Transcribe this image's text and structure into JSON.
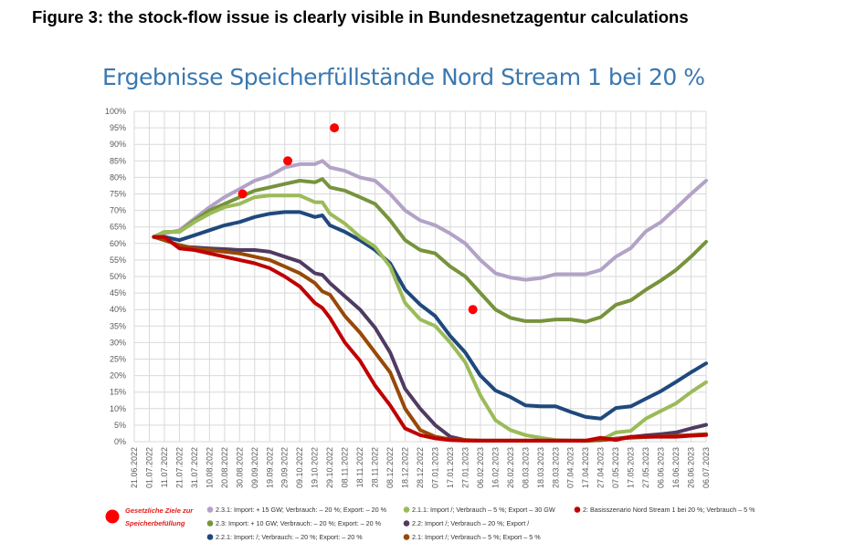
{
  "figure_title": "Figure 3: the stock-flow issue is clearly visible in Bundesnetzagentur calculations",
  "chart_data": {
    "type": "line",
    "title": "Ergebnisse Speicherfüllstände Nord Stream 1 bei 20 %",
    "xlabel": "",
    "ylabel": "",
    "xlim": [
      "2022-06-21",
      "2023-07-06"
    ],
    "ylim": [
      0,
      100
    ],
    "grid": true,
    "legend_position": "bottom",
    "y_ticks": [
      "0%",
      "5%",
      "10%",
      "15%",
      "20%",
      "25%",
      "30%",
      "35%",
      "40%",
      "45%",
      "50%",
      "55%",
      "60%",
      "65%",
      "70%",
      "75%",
      "80%",
      "85%",
      "90%",
      "95%",
      "100%"
    ],
    "x_ticks": [
      "21.06.2022",
      "01.07.2022",
      "11.07.2022",
      "21.07.2022",
      "31.07.2022",
      "10.08.2022",
      "20.08.2022",
      "30.08.2022",
      "09.09.2022",
      "19.09.2022",
      "29.09.2022",
      "09.10.2022",
      "19.10.2022",
      "29.10.2022",
      "08.11.2022",
      "18.11.2022",
      "28.11.2022",
      "08.12.2022",
      "18.12.2022",
      "28.12.2022",
      "07.01.2023",
      "17.01.2023",
      "27.01.2023",
      "06.02.2023",
      "16.02.2023",
      "26.02.2023",
      "08.03.2023",
      "18.03.2023",
      "28.03.2023",
      "07.04.2023",
      "17.04.2023",
      "27.04.2023",
      "07.05.2023",
      "17.05.2023",
      "27.05.2023",
      "06.06.2023",
      "16.06.2023",
      "26.06.2023",
      "06.07.2023"
    ],
    "x": [
      "2022-07-04",
      "2022-07-11",
      "2022-07-21",
      "2022-07-31",
      "2022-08-10",
      "2022-08-20",
      "2022-08-30",
      "2022-09-09",
      "2022-09-19",
      "2022-09-29",
      "2022-10-09",
      "2022-10-19",
      "2022-10-24",
      "2022-10-29",
      "2022-11-08",
      "2022-11-18",
      "2022-11-28",
      "2022-12-08",
      "2022-12-18",
      "2022-12-28",
      "2023-01-07",
      "2023-01-17",
      "2023-01-27",
      "2023-02-06",
      "2023-02-16",
      "2023-02-26",
      "2023-03-08",
      "2023-03-18",
      "2023-03-28",
      "2023-04-07",
      "2023-04-17",
      "2023-04-27",
      "2023-05-07",
      "2023-05-17",
      "2023-05-27",
      "2023-06-06",
      "2023-06-16",
      "2023-06-26",
      "2023-07-06"
    ],
    "series": [
      {
        "name": "2.3.1: Import: + 15 GW; Verbrauch: – 20 %; Export: – 20 %",
        "color": "#b3a2c7",
        "values": [
          62,
          63,
          64,
          67.5,
          71,
          74,
          76.5,
          79,
          80.5,
          83,
          84,
          84,
          85,
          83,
          82,
          80,
          79,
          75,
          70,
          67,
          65.5,
          63,
          60,
          55,
          51,
          49.7,
          49,
          49.5,
          50.7,
          50.7,
          50.7,
          52,
          56,
          58.6,
          63.7,
          66.5,
          70.7,
          75,
          79
        ]
      },
      {
        "name": "2.3: Import: + 10 GW; Verbrauch: – 20 %; Export: – 20 %",
        "color": "#77933c",
        "values": [
          62,
          63.5,
          63.5,
          67,
          70,
          72,
          74,
          76,
          77,
          78,
          79,
          78.5,
          79.5,
          77,
          76,
          74,
          72,
          67,
          61,
          58,
          57,
          53,
          50,
          45,
          40,
          37.5,
          36.5,
          36.5,
          37,
          37,
          36.3,
          37.7,
          41.4,
          42.8,
          46,
          48.8,
          52,
          56,
          60.5
        ]
      },
      {
        "name": "2.2.1: Import: /; Verbrauch: – 20 %; Export: – 20 %",
        "color": "#1f497d",
        "values": [
          62,
          62,
          61,
          62.5,
          64,
          65.5,
          66.5,
          68,
          69,
          69.5,
          69.5,
          68,
          68.5,
          65.5,
          63.5,
          61,
          58,
          54,
          46,
          41.5,
          38,
          32,
          27,
          20,
          15.5,
          13.5,
          11,
          10.7,
          10.7,
          9,
          7.5,
          7,
          10.2,
          10.7,
          13,
          15.3,
          18.1,
          21,
          23.7
        ]
      },
      {
        "name": "2.1.1: Import /; Verbrauch – 5 %; Export – 30 GW",
        "color": "#9bbb59",
        "values": [
          62,
          63.5,
          63.5,
          66.5,
          69,
          71,
          72,
          74,
          74.5,
          74.5,
          74.5,
          72.5,
          72.5,
          69,
          66,
          62,
          59,
          53,
          42,
          37,
          35,
          30,
          24,
          14,
          6.5,
          3.5,
          2,
          1.2,
          0.5,
          0.3,
          0.2,
          0.5,
          2.8,
          3.3,
          7,
          9.3,
          11.6,
          15,
          18
        ]
      },
      {
        "name": "2.2: Import /; Verbrauch – 20 %; Export /",
        "color": "#4f3b62",
        "values": [
          62,
          61.5,
          59,
          58.8,
          58.5,
          58.3,
          58,
          58,
          57.5,
          56,
          54.5,
          51,
          50.5,
          48,
          44,
          40,
          34.5,
          27,
          16,
          10,
          5,
          1.5,
          0.5,
          0.3,
          0.3,
          0.3,
          0.3,
          0.3,
          0.3,
          0.3,
          0.3,
          0.5,
          0.9,
          1.4,
          1.9,
          2.3,
          2.8,
          4,
          5.1
        ]
      },
      {
        "name": "2.1: Import /; Verbrauch – 5 %; Export – 5 %",
        "color": "#984807",
        "values": [
          62,
          61,
          59.5,
          58.5,
          58,
          57.5,
          57,
          56,
          55,
          53,
          51,
          48,
          45.5,
          44.5,
          38,
          33,
          27,
          21,
          10,
          3.5,
          1.5,
          0.7,
          0.5,
          0.3,
          0.3,
          0.3,
          0.3,
          0.3,
          0.3,
          0.3,
          0.3,
          0.5,
          0.9,
          1.2,
          1.4,
          1.6,
          1.8,
          2,
          2.3
        ]
      },
      {
        "name": "2: Basisszenario Nord Stream 1 bei 20 %; Verbrauch – 5 %",
        "color": "#c00000",
        "values": [
          62,
          62,
          58.5,
          58,
          57,
          56,
          55,
          54,
          52.5,
          50,
          47,
          42,
          40.5,
          37.5,
          30,
          24.5,
          17,
          11,
          4,
          2,
          1,
          0.5,
          0.3,
          0.3,
          0.3,
          0.3,
          0.3,
          0.3,
          0.3,
          0.3,
          0.3,
          1.2,
          0.5,
          1.5,
          1.5,
          1.5,
          1.5,
          1.8,
          2
        ]
      }
    ],
    "targets": {
      "name_line1": "Gesetzliche Ziele zur",
      "name_line2": "Speicherbefüllung",
      "color": "#ff0000",
      "points": [
        [
          "2022-09-01",
          75
        ],
        [
          "2022-10-01",
          85
        ],
        [
          "2022-11-01",
          95
        ],
        [
          "2023-02-01",
          40
        ]
      ]
    }
  }
}
